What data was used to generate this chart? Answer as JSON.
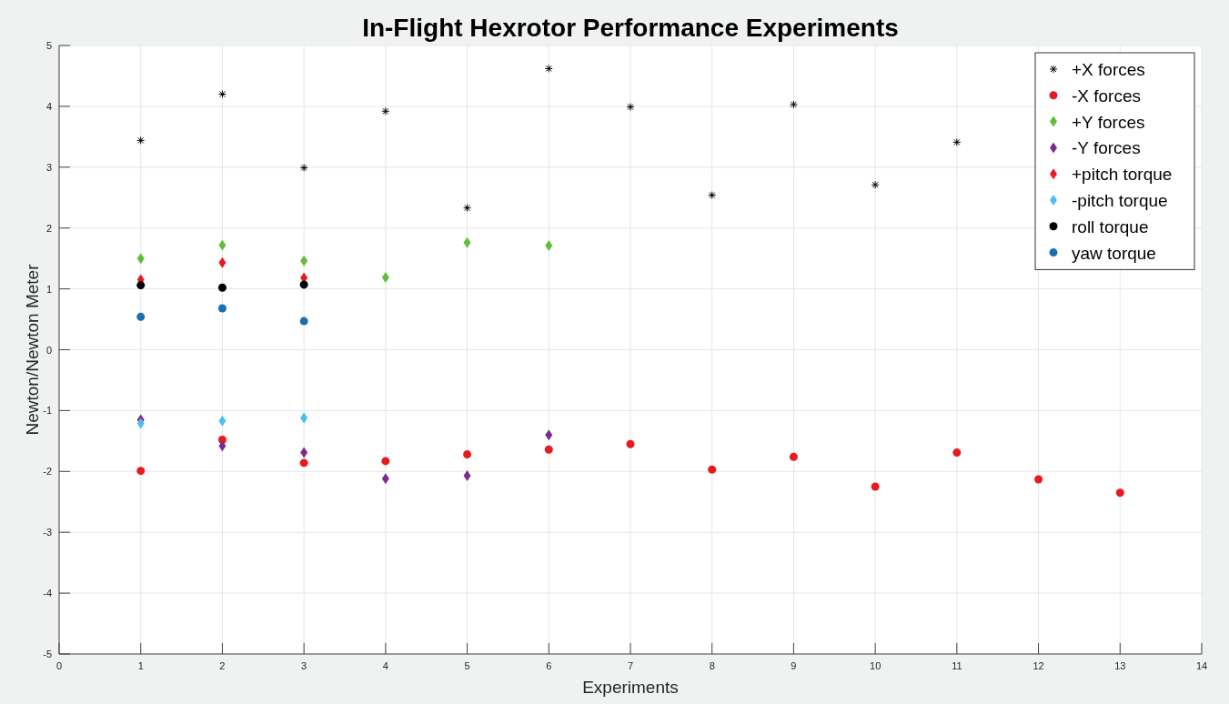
{
  "chart_data": {
    "type": "scatter",
    "title": "In-Flight Hexrotor Performance Experiments",
    "xlabel": "Experiments",
    "ylabel": "Newton/Newton Meter",
    "xlim": [
      0,
      14
    ],
    "xticks": [
      0,
      1,
      2,
      3,
      4,
      5,
      6,
      7,
      8,
      9,
      10,
      11,
      12,
      13,
      14
    ],
    "ylim": [
      -5,
      5
    ],
    "yticks": [
      -5,
      -4,
      -3,
      -2,
      -1,
      0,
      1,
      2,
      3,
      4,
      5
    ],
    "grid": true,
    "legend": "top right",
    "series": [
      {
        "name": "+X forces",
        "color": "#000000",
        "marker": "cross",
        "x": [
          1,
          2,
          3,
          4,
          5,
          6,
          7,
          8,
          9,
          10,
          11
        ],
        "values": [
          3.44,
          4.2,
          2.99,
          3.92,
          2.33,
          4.62,
          3.99,
          2.54,
          4.03,
          2.71,
          3.41
        ]
      },
      {
        "name": "-X forces",
        "color": "#e8191f",
        "marker": "circle",
        "x": [
          1,
          2,
          3,
          4,
          5,
          6,
          7,
          8,
          9,
          10,
          11,
          12,
          13
        ],
        "values": [
          -1.99,
          -1.48,
          -1.86,
          -1.83,
          -1.72,
          -1.64,
          -1.55,
          -1.97,
          -1.76,
          -2.25,
          -1.69,
          -2.13,
          -2.35
        ]
      },
      {
        "name": "+Y forces",
        "color": "#5fbf3a",
        "marker": "diamond",
        "x": [
          1,
          2,
          3,
          4,
          5,
          6
        ],
        "values": [
          1.5,
          1.72,
          1.46,
          1.19,
          1.76,
          1.71
        ]
      },
      {
        "name": "-Y forces",
        "color": "#7a2c8f",
        "marker": "diamond",
        "x": [
          1,
          2,
          3,
          4,
          5,
          6
        ],
        "values": [
          -1.15,
          -1.58,
          -1.69,
          -2.12,
          -2.07,
          -1.4
        ]
      },
      {
        "name": "+pitch torque",
        "color": "#e8191f",
        "marker": "diamond",
        "x": [
          1,
          2,
          3
        ],
        "values": [
          1.15,
          1.43,
          1.18
        ]
      },
      {
        "name": "-pitch torque",
        "color": "#4dbeee",
        "marker": "diamond",
        "x": [
          1,
          2,
          3
        ],
        "values": [
          -1.21,
          -1.17,
          -1.12
        ]
      },
      {
        "name": "roll torque",
        "color": "#000000",
        "marker": "circle",
        "x": [
          1,
          2,
          3
        ],
        "values": [
          1.06,
          1.02,
          1.07
        ]
      },
      {
        "name": "yaw torque",
        "color": "#1a6fb3",
        "marker": "circle",
        "x": [
          1,
          2,
          3
        ],
        "values": [
          0.54,
          0.68,
          0.47
        ]
      }
    ]
  }
}
